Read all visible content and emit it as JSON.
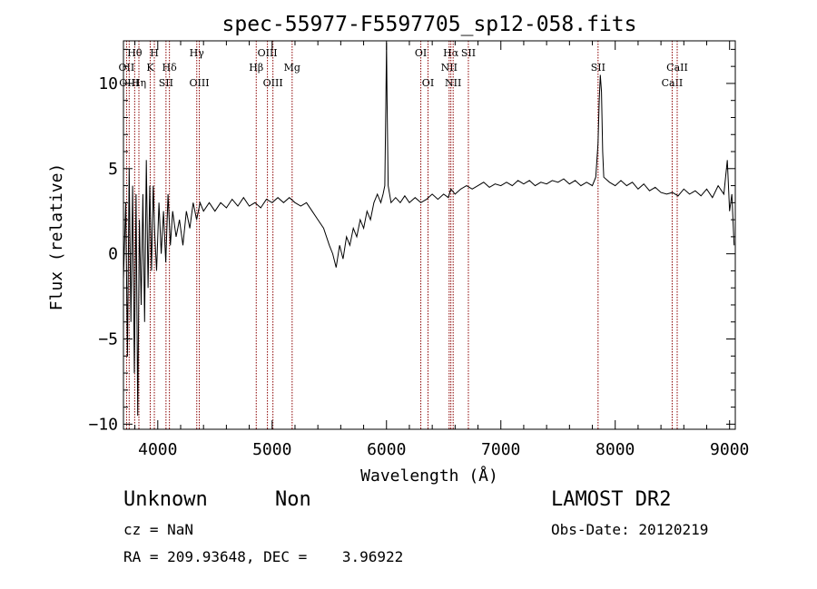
{
  "chart_data": {
    "type": "line",
    "title": "spec-55977-F5597705_sp12-058.fits",
    "xlabel": "Wavelength (Å)",
    "ylabel": "Flux (relative)",
    "xlim": [
      3700,
      9050
    ],
    "ylim": [
      -10.3,
      12.5
    ],
    "x_ticks": [
      4000,
      5000,
      6000,
      7000,
      8000,
      9000
    ],
    "y_ticks": [
      -10,
      -5,
      0,
      5,
      10
    ],
    "grid": false,
    "line_color": "#000000",
    "marker_line_color": "#8b0000",
    "series": [
      {
        "values": [
          [
            3700,
            -1.5
          ],
          [
            3720,
            3.0
          ],
          [
            3735,
            -6.0
          ],
          [
            3750,
            5.0
          ],
          [
            3765,
            -4.0
          ],
          [
            3780,
            4.0
          ],
          [
            3795,
            -7.0
          ],
          [
            3810,
            3.5
          ],
          [
            3825,
            -9.5
          ],
          [
            3840,
            2.0
          ],
          [
            3855,
            -3.0
          ],
          [
            3870,
            3.5
          ],
          [
            3885,
            -4.0
          ],
          [
            3900,
            5.5
          ],
          [
            3915,
            -2.0
          ],
          [
            3930,
            4.0
          ],
          [
            3945,
            -1.0
          ],
          [
            3960,
            4.0
          ],
          [
            3975,
            1.0
          ],
          [
            3990,
            -1.0
          ],
          [
            4010,
            3.0
          ],
          [
            4030,
            0.0
          ],
          [
            4050,
            2.5
          ],
          [
            4070,
            -0.5
          ],
          [
            4090,
            3.5
          ],
          [
            4110,
            0.5
          ],
          [
            4130,
            2.5
          ],
          [
            4160,
            1.0
          ],
          [
            4190,
            2.0
          ],
          [
            4220,
            0.5
          ],
          [
            4250,
            2.5
          ],
          [
            4280,
            1.5
          ],
          [
            4310,
            3.0
          ],
          [
            4340,
            2.0
          ],
          [
            4370,
            3.0
          ],
          [
            4400,
            2.5
          ],
          [
            4450,
            3.0
          ],
          [
            4500,
            2.5
          ],
          [
            4550,
            3.0
          ],
          [
            4600,
            2.7
          ],
          [
            4650,
            3.2
          ],
          [
            4700,
            2.8
          ],
          [
            4750,
            3.3
          ],
          [
            4800,
            2.8
          ],
          [
            4850,
            3.0
          ],
          [
            4900,
            2.7
          ],
          [
            4950,
            3.2
          ],
          [
            5000,
            3.0
          ],
          [
            5050,
            3.3
          ],
          [
            5100,
            3.0
          ],
          [
            5150,
            3.3
          ],
          [
            5200,
            3.0
          ],
          [
            5250,
            2.8
          ],
          [
            5300,
            3.0
          ],
          [
            5350,
            2.5
          ],
          [
            5400,
            2.0
          ],
          [
            5450,
            1.5
          ],
          [
            5500,
            0.5
          ],
          [
            5530,
            0.0
          ],
          [
            5560,
            -0.8
          ],
          [
            5590,
            0.5
          ],
          [
            5620,
            -0.3
          ],
          [
            5650,
            1.0
          ],
          [
            5680,
            0.5
          ],
          [
            5710,
            1.5
          ],
          [
            5740,
            1.0
          ],
          [
            5770,
            2.0
          ],
          [
            5800,
            1.5
          ],
          [
            5830,
            2.5
          ],
          [
            5860,
            2.0
          ],
          [
            5890,
            3.0
          ],
          [
            5920,
            3.5
          ],
          [
            5950,
            3.0
          ],
          [
            5970,
            3.5
          ],
          [
            5985,
            4.0
          ],
          [
            5995,
            9.0
          ],
          [
            6000,
            12.4
          ],
          [
            6005,
            9.0
          ],
          [
            6015,
            4.0
          ],
          [
            6040,
            3.0
          ],
          [
            6080,
            3.3
          ],
          [
            6120,
            3.0
          ],
          [
            6160,
            3.4
          ],
          [
            6200,
            3.0
          ],
          [
            6250,
            3.3
          ],
          [
            6300,
            3.0
          ],
          [
            6350,
            3.2
          ],
          [
            6400,
            3.5
          ],
          [
            6450,
            3.2
          ],
          [
            6500,
            3.5
          ],
          [
            6540,
            3.3
          ],
          [
            6563,
            3.8
          ],
          [
            6600,
            3.5
          ],
          [
            6650,
            3.8
          ],
          [
            6700,
            4.0
          ],
          [
            6750,
            3.8
          ],
          [
            6800,
            4.0
          ],
          [
            6850,
            4.2
          ],
          [
            6900,
            3.9
          ],
          [
            6950,
            4.1
          ],
          [
            7000,
            4.0
          ],
          [
            7050,
            4.2
          ],
          [
            7100,
            4.0
          ],
          [
            7150,
            4.3
          ],
          [
            7200,
            4.1
          ],
          [
            7250,
            4.3
          ],
          [
            7300,
            4.0
          ],
          [
            7350,
            4.2
          ],
          [
            7400,
            4.1
          ],
          [
            7450,
            4.3
          ],
          [
            7500,
            4.2
          ],
          [
            7550,
            4.4
          ],
          [
            7600,
            4.1
          ],
          [
            7650,
            4.3
          ],
          [
            7700,
            4.0
          ],
          [
            7750,
            4.2
          ],
          [
            7800,
            4.0
          ],
          [
            7830,
            4.5
          ],
          [
            7850,
            6.5
          ],
          [
            7860,
            9.0
          ],
          [
            7870,
            10.5
          ],
          [
            7880,
            9.5
          ],
          [
            7890,
            6.0
          ],
          [
            7900,
            4.5
          ],
          [
            7950,
            4.2
          ],
          [
            8000,
            4.0
          ],
          [
            8050,
            4.3
          ],
          [
            8100,
            4.0
          ],
          [
            8150,
            4.2
          ],
          [
            8200,
            3.8
          ],
          [
            8250,
            4.1
          ],
          [
            8300,
            3.7
          ],
          [
            8350,
            3.9
          ],
          [
            8400,
            3.6
          ],
          [
            8450,
            3.5
          ],
          [
            8500,
            3.6
          ],
          [
            8550,
            3.4
          ],
          [
            8600,
            3.8
          ],
          [
            8650,
            3.5
          ],
          [
            8700,
            3.7
          ],
          [
            8750,
            3.4
          ],
          [
            8800,
            3.8
          ],
          [
            8850,
            3.3
          ],
          [
            8900,
            4.0
          ],
          [
            8950,
            3.5
          ],
          [
            8980,
            5.5
          ],
          [
            9000,
            2.5
          ],
          [
            9020,
            3.5
          ],
          [
            9040,
            0.5
          ]
        ]
      }
    ],
    "line_markers": [
      {
        "wavelength": 3727,
        "label": "OII",
        "row": 2
      },
      {
        "wavelength": 3750,
        "label": "OIII",
        "row": 3
      },
      {
        "wavelength": 3798,
        "label": "Hθ",
        "row": 1
      },
      {
        "wavelength": 3835,
        "label": "Hη",
        "row": 3
      },
      {
        "wavelength": 3934,
        "label": "K",
        "row": 2
      },
      {
        "wavelength": 3970,
        "label": "H",
        "row": 1
      },
      {
        "wavelength": 4072,
        "label": "SII",
        "row": 3
      },
      {
        "wavelength": 4102,
        "label": "Hδ",
        "row": 2
      },
      {
        "wavelength": 4341,
        "label": "Hγ",
        "row": 1
      },
      {
        "wavelength": 4363,
        "label": "OIII",
        "row": 3
      },
      {
        "wavelength": 4861,
        "label": "Hβ",
        "row": 2
      },
      {
        "wavelength": 4959,
        "label": "OIII",
        "row": 1
      },
      {
        "wavelength": 5007,
        "label": "OIII",
        "row": 3
      },
      {
        "wavelength": 5175,
        "label": "Mg",
        "row": 2
      },
      {
        "wavelength": 6300,
        "label": "OI",
        "row": 1
      },
      {
        "wavelength": 6363,
        "label": "OI",
        "row": 3
      },
      {
        "wavelength": 6548,
        "label": "NII",
        "row": 2
      },
      {
        "wavelength": 6563,
        "label": "Hα",
        "row": 1
      },
      {
        "wavelength": 6583,
        "label": "NII",
        "row": 3
      },
      {
        "wavelength": 6716,
        "label": "SII",
        "row": 1
      },
      {
        "wavelength": 7850,
        "label": "SII",
        "row": 2
      },
      {
        "wavelength": 8498,
        "label": "CaII",
        "row": 3
      },
      {
        "wavelength": 8542,
        "label": "CaII",
        "row": 2
      }
    ]
  },
  "footer": {
    "object_class": "Unknown",
    "subclass": "Non",
    "survey": "LAMOST DR2",
    "cz": "cz = NaN",
    "obs_date": "Obs-Date: 20120219",
    "coords": "RA = 209.93648, DEC =    3.96922"
  }
}
